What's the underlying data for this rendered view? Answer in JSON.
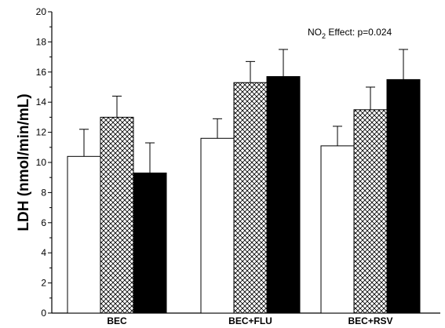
{
  "chart_data": {
    "type": "bar",
    "title": "",
    "xlabel": "",
    "ylabel": "LDH (nmol/min/mL)",
    "ylim": [
      0,
      20
    ],
    "yticks": [
      0,
      2,
      4,
      6,
      8,
      10,
      12,
      14,
      16,
      18,
      20
    ],
    "categories": [
      "BEC",
      "BEC+FLU",
      "BEC+RSV"
    ],
    "series": [
      {
        "values": [
          10.4,
          11.6,
          11.1
        ],
        "errors": [
          1.8,
          1.3,
          1.3
        ],
        "fill": "white"
      },
      {
        "values": [
          13.0,
          15.3,
          13.5
        ],
        "errors": [
          1.4,
          1.4,
          1.5
        ],
        "fill": "crosshatch"
      },
      {
        "values": [
          9.3,
          15.7,
          15.5
        ],
        "errors": [
          2.0,
          1.8,
          2.0
        ],
        "fill": "black"
      }
    ],
    "annotation": {
      "prefix": "NO",
      "subscript": "2",
      "suffix": " Effect: p=0.024"
    },
    "legend": "none",
    "grid": false
  }
}
